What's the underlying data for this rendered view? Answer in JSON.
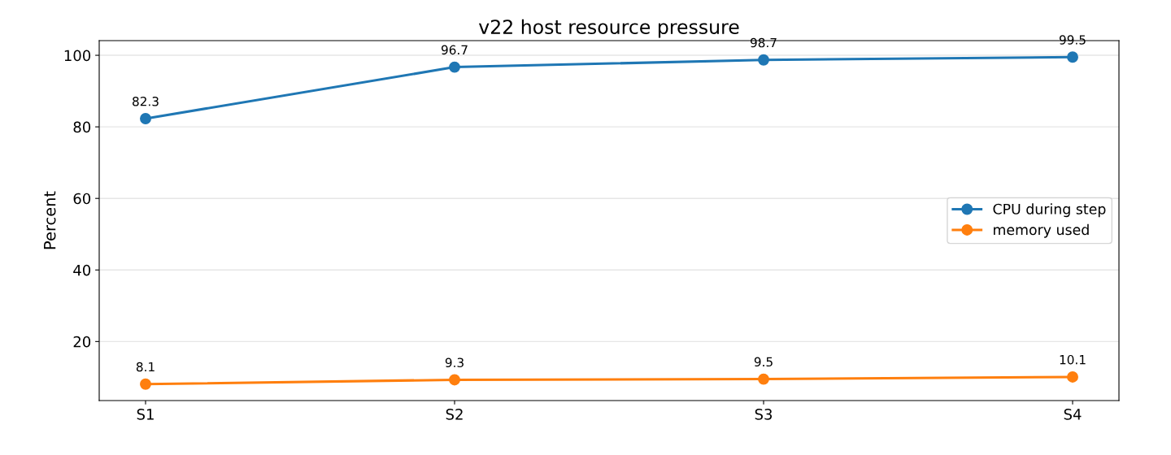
{
  "chart_data": {
    "type": "line",
    "title": "v22 host resource pressure",
    "ylabel": "Percent",
    "categories": [
      "S1",
      "S2",
      "S3",
      "S4"
    ],
    "series": [
      {
        "name": "CPU during step",
        "color": "#1f77b4",
        "values": [
          82.3,
          96.7,
          98.7,
          99.5
        ]
      },
      {
        "name": "memory used",
        "color": "#ff7f0e",
        "values": [
          8.1,
          9.3,
          9.5,
          10.1
        ]
      }
    ],
    "ylim": [
      3.5,
      104.1
    ],
    "yticks": [
      20,
      40,
      60,
      80,
      100
    ],
    "grid": "y",
    "legend": "right",
    "marker": "circle",
    "line_style": "solid",
    "data_labels": true
  }
}
